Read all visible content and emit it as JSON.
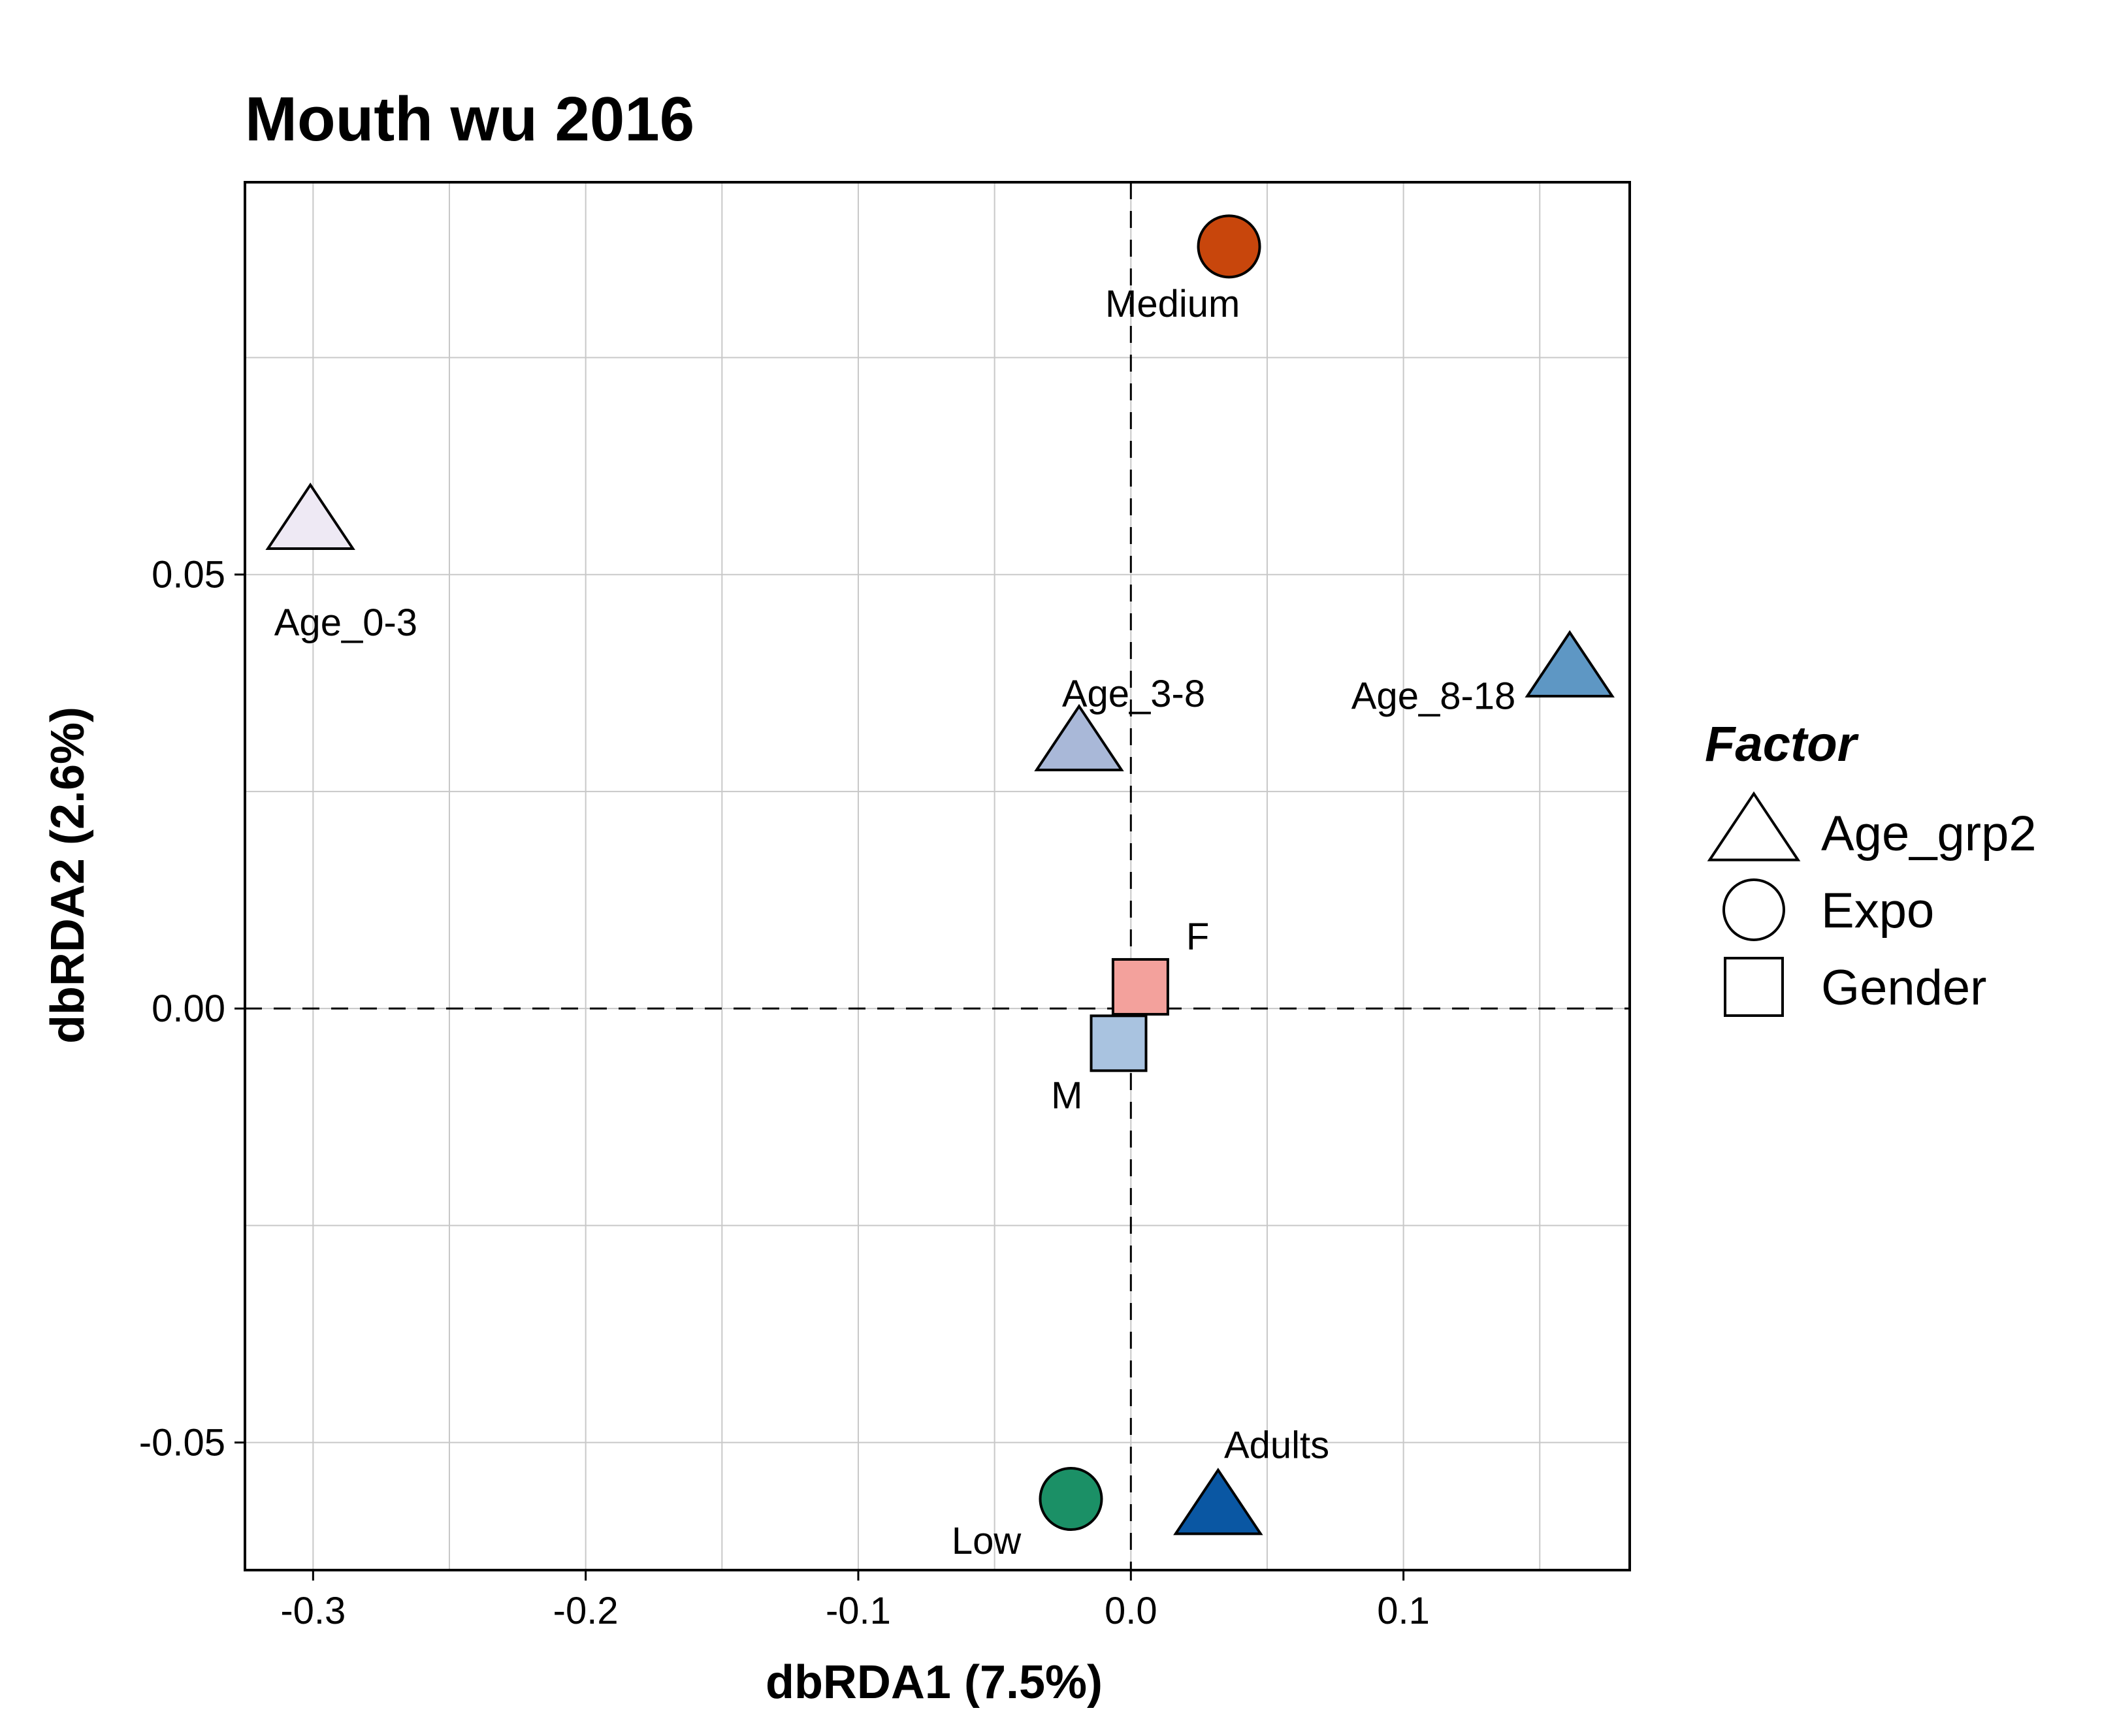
{
  "chart_data": {
    "type": "scatter",
    "title": "Mouth wu 2016",
    "xlabel": "dbRDA1 (7.5%)",
    "ylabel": "dbRDA2 (2.6%)",
    "xlim": [
      -0.325,
      0.183
    ],
    "ylim": [
      -0.0647,
      0.0952
    ],
    "x_ticks": [
      {
        "value": -0.3,
        "label": "-0.3"
      },
      {
        "value": -0.2,
        "label": "-0.2"
      },
      {
        "value": -0.1,
        "label": "-0.1"
      },
      {
        "value": 0.0,
        "label": "0.0"
      },
      {
        "value": 0.1,
        "label": "0.1"
      }
    ],
    "y_ticks": [
      {
        "value": -0.05,
        "label": "-0.05"
      },
      {
        "value": 0.0,
        "label": "0.00"
      },
      {
        "value": 0.05,
        "label": "0.05"
      }
    ],
    "x_minor_grid": [
      -0.25,
      -0.15,
      -0.05,
      0.05,
      0.15
    ],
    "y_minor_grid": [
      -0.025,
      0.025,
      0.075
    ],
    "grid": true,
    "reference_lines": {
      "x": 0,
      "y": 0,
      "style": "dashed"
    },
    "points": [
      {
        "label": "Medium",
        "x": 0.036,
        "y": 0.0878,
        "shape": "circle",
        "factor": "Expo",
        "color": "#C8460C",
        "label_dx": -0.0207,
        "label_dy": -0.0066
      },
      {
        "label": "Age_0-3",
        "x": -0.301,
        "y": 0.056,
        "shape": "triangle",
        "factor": "Age_grp2",
        "color": "#EEE9F4",
        "label_dx": 0.013,
        "label_dy": -0.0115
      },
      {
        "label": "Age_3-8",
        "x": -0.019,
        "y": 0.0305,
        "shape": "triangle",
        "factor": "Age_grp2",
        "color": "#A9B8D8",
        "label_dx": 0.02,
        "label_dy": 0.0058
      },
      {
        "label": "Age_8-18",
        "x": 0.161,
        "y": 0.039,
        "shape": "triangle",
        "factor": "Age_grp2",
        "color": "#5E97C4",
        "label_dx": -0.05,
        "label_dy": -0.003
      },
      {
        "label": "F",
        "x": 0.0035,
        "y": 0.0025,
        "shape": "square",
        "factor": "Gender",
        "color": "#F3A19C",
        "label_dx": 0.021,
        "label_dy": 0.0058
      },
      {
        "label": "M",
        "x": -0.0045,
        "y": -0.004,
        "shape": "square",
        "factor": "Gender",
        "color": "#A9C3E0",
        "label_dx": -0.019,
        "label_dy": -0.006
      },
      {
        "label": "Low",
        "x": -0.022,
        "y": -0.0565,
        "shape": "circle",
        "factor": "Expo",
        "color": "#1B9066",
        "label_dx": -0.031,
        "label_dy": -0.0048
      },
      {
        "label": "Adults",
        "x": 0.032,
        "y": -0.0575,
        "shape": "triangle",
        "factor": "Age_grp2",
        "color": "#0A57A3",
        "label_dx": 0.0215,
        "label_dy": 0.0072
      }
    ],
    "legend": {
      "title": "Factor",
      "position": "right",
      "items": [
        {
          "shape": "triangle",
          "label": "Age_grp2"
        },
        {
          "shape": "circle",
          "label": "Expo"
        },
        {
          "shape": "square",
          "label": "Gender"
        }
      ]
    }
  }
}
